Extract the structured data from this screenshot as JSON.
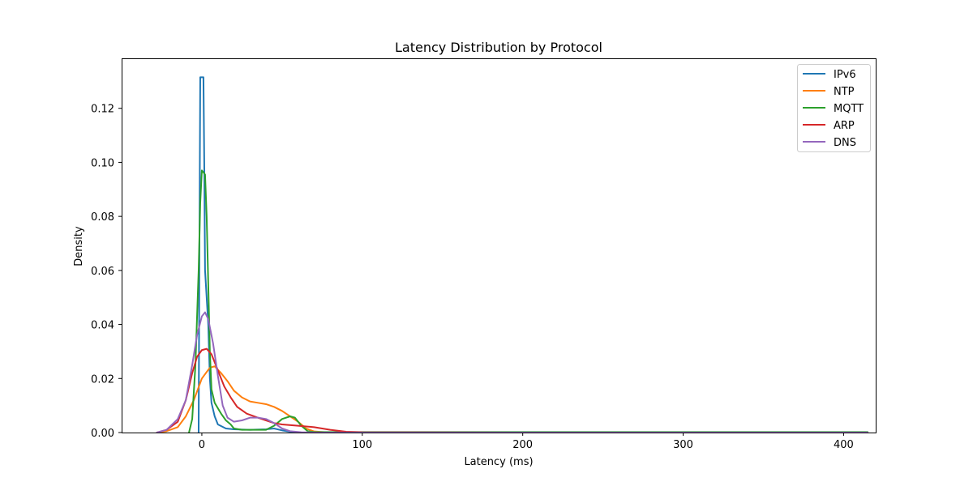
{
  "chart_data": {
    "type": "line",
    "title": "Latency Distribution by Protocol",
    "xlabel": "Latency (ms)",
    "ylabel": "Density",
    "xlim": [
      -50,
      420
    ],
    "ylim": [
      0,
      0.1385
    ],
    "xticks": [
      0,
      100,
      200,
      300,
      400
    ],
    "yticks": [
      0.0,
      0.02,
      0.04,
      0.06,
      0.08,
      0.1,
      0.12
    ],
    "ytick_labels": [
      "0.00",
      "0.02",
      "0.04",
      "0.06",
      "0.08",
      "0.10",
      "0.12"
    ],
    "legend_position": "top-right",
    "series": [
      {
        "name": "IPv6",
        "color": "#1f77b4",
        "points": [
          [
            -2,
            0.0
          ],
          [
            -1.5,
            0.07
          ],
          [
            -1,
            0.1315
          ],
          [
            1,
            0.1315
          ],
          [
            1.5,
            0.1
          ],
          [
            2,
            0.06
          ],
          [
            4,
            0.04
          ],
          [
            5,
            0.02
          ],
          [
            6,
            0.011
          ],
          [
            8,
            0.006
          ],
          [
            10,
            0.003
          ],
          [
            15,
            0.0015
          ],
          [
            20,
            0.0012
          ],
          [
            30,
            0.001
          ],
          [
            40,
            0.0012
          ],
          [
            45,
            0.0015
          ],
          [
            50,
            0.0008
          ],
          [
            55,
            0.0003
          ],
          [
            60,
            0.0
          ],
          [
            100,
            0.0
          ],
          [
            200,
            0.0
          ],
          [
            300,
            0.0
          ],
          [
            415,
            0.0
          ]
        ]
      },
      {
        "name": "NTP",
        "color": "#ff7f0e",
        "points": [
          [
            -28,
            0.0
          ],
          [
            -22,
            0.0005
          ],
          [
            -15,
            0.002
          ],
          [
            -10,
            0.006
          ],
          [
            -5,
            0.012
          ],
          [
            0,
            0.02
          ],
          [
            5,
            0.024
          ],
          [
            8,
            0.0245
          ],
          [
            12,
            0.022
          ],
          [
            16,
            0.019
          ],
          [
            20,
            0.0155
          ],
          [
            25,
            0.013
          ],
          [
            30,
            0.0115
          ],
          [
            35,
            0.011
          ],
          [
            40,
            0.0105
          ],
          [
            45,
            0.0095
          ],
          [
            50,
            0.008
          ],
          [
            55,
            0.006
          ],
          [
            60,
            0.004
          ],
          [
            65,
            0.0015
          ],
          [
            70,
            0.0004
          ],
          [
            80,
            0.0
          ],
          [
            100,
            0.0
          ],
          [
            200,
            0.0
          ],
          [
            300,
            0.0
          ],
          [
            415,
            0.0
          ]
        ]
      },
      {
        "name": "MQTT",
        "color": "#2ca02c",
        "points": [
          [
            -8,
            0.0
          ],
          [
            -6,
            0.005
          ],
          [
            -4,
            0.025
          ],
          [
            -2,
            0.06
          ],
          [
            -1,
            0.085
          ],
          [
            0,
            0.097
          ],
          [
            2,
            0.0955
          ],
          [
            3,
            0.08
          ],
          [
            4,
            0.055
          ],
          [
            5,
            0.03
          ],
          [
            6,
            0.016
          ],
          [
            8,
            0.011
          ],
          [
            10,
            0.009
          ],
          [
            12,
            0.007
          ],
          [
            15,
            0.0045
          ],
          [
            18,
            0.003
          ],
          [
            20,
            0.0015
          ],
          [
            25,
            0.001
          ],
          [
            30,
            0.001
          ],
          [
            40,
            0.001
          ],
          [
            45,
            0.0025
          ],
          [
            50,
            0.005
          ],
          [
            55,
            0.006
          ],
          [
            58,
            0.0055
          ],
          [
            62,
            0.0025
          ],
          [
            66,
            0.0005
          ],
          [
            70,
            0.0002
          ],
          [
            100,
            0.0002
          ],
          [
            200,
            0.0002
          ],
          [
            300,
            0.0002
          ],
          [
            415,
            0.0002
          ]
        ]
      },
      {
        "name": "ARP",
        "color": "#d62728",
        "points": [
          [
            -28,
            0.0
          ],
          [
            -22,
            0.001
          ],
          [
            -15,
            0.004
          ],
          [
            -10,
            0.012
          ],
          [
            -6,
            0.022
          ],
          [
            -3,
            0.028
          ],
          [
            0,
            0.0305
          ],
          [
            3,
            0.031
          ],
          [
            6,
            0.029
          ],
          [
            10,
            0.023
          ],
          [
            14,
            0.017
          ],
          [
            18,
            0.013
          ],
          [
            22,
            0.0095
          ],
          [
            28,
            0.007
          ],
          [
            35,
            0.0055
          ],
          [
            40,
            0.0045
          ],
          [
            45,
            0.0035
          ],
          [
            50,
            0.003
          ],
          [
            60,
            0.0025
          ],
          [
            70,
            0.002
          ],
          [
            80,
            0.001
          ],
          [
            90,
            0.0003
          ],
          [
            100,
            0.0001
          ],
          [
            200,
            0.0
          ],
          [
            300,
            0.0
          ],
          [
            415,
            0.0
          ]
        ]
      },
      {
        "name": "DNS",
        "color": "#9467bd",
        "points": [
          [
            -28,
            0.0
          ],
          [
            -22,
            0.001
          ],
          [
            -15,
            0.005
          ],
          [
            -10,
            0.012
          ],
          [
            -6,
            0.025
          ],
          [
            -3,
            0.036
          ],
          [
            0,
            0.043
          ],
          [
            2,
            0.0445
          ],
          [
            4,
            0.042
          ],
          [
            7,
            0.033
          ],
          [
            10,
            0.021
          ],
          [
            13,
            0.01
          ],
          [
            16,
            0.0055
          ],
          [
            20,
            0.004
          ],
          [
            25,
            0.0045
          ],
          [
            30,
            0.0055
          ],
          [
            35,
            0.0055
          ],
          [
            40,
            0.005
          ],
          [
            45,
            0.0035
          ],
          [
            50,
            0.0015
          ],
          [
            55,
            0.0005
          ],
          [
            62,
            0.0001
          ],
          [
            70,
            0.0
          ],
          [
            100,
            0.0
          ],
          [
            200,
            0.0
          ],
          [
            300,
            0.0
          ],
          [
            415,
            0.0
          ]
        ]
      }
    ]
  }
}
